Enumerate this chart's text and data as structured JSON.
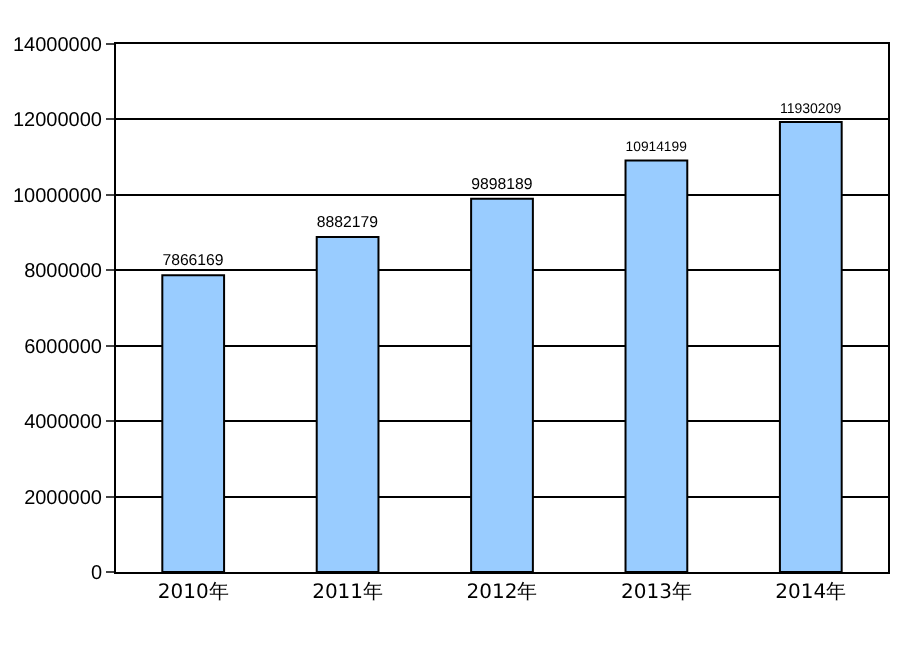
{
  "chart_data": {
    "type": "bar",
    "categories": [
      "2010年",
      "2011年",
      "2012年",
      "2013年",
      "2014年"
    ],
    "values": [
      7866169,
      8882179,
      9898189,
      10914199,
      11930209
    ],
    "color": "#99ccff",
    "ylim": [
      0,
      14000000
    ],
    "yticks": [
      0,
      2000000,
      4000000,
      6000000,
      8000000,
      10000000,
      12000000,
      14000000
    ],
    "grid": "y",
    "data_labels": true,
    "legend": false
  }
}
